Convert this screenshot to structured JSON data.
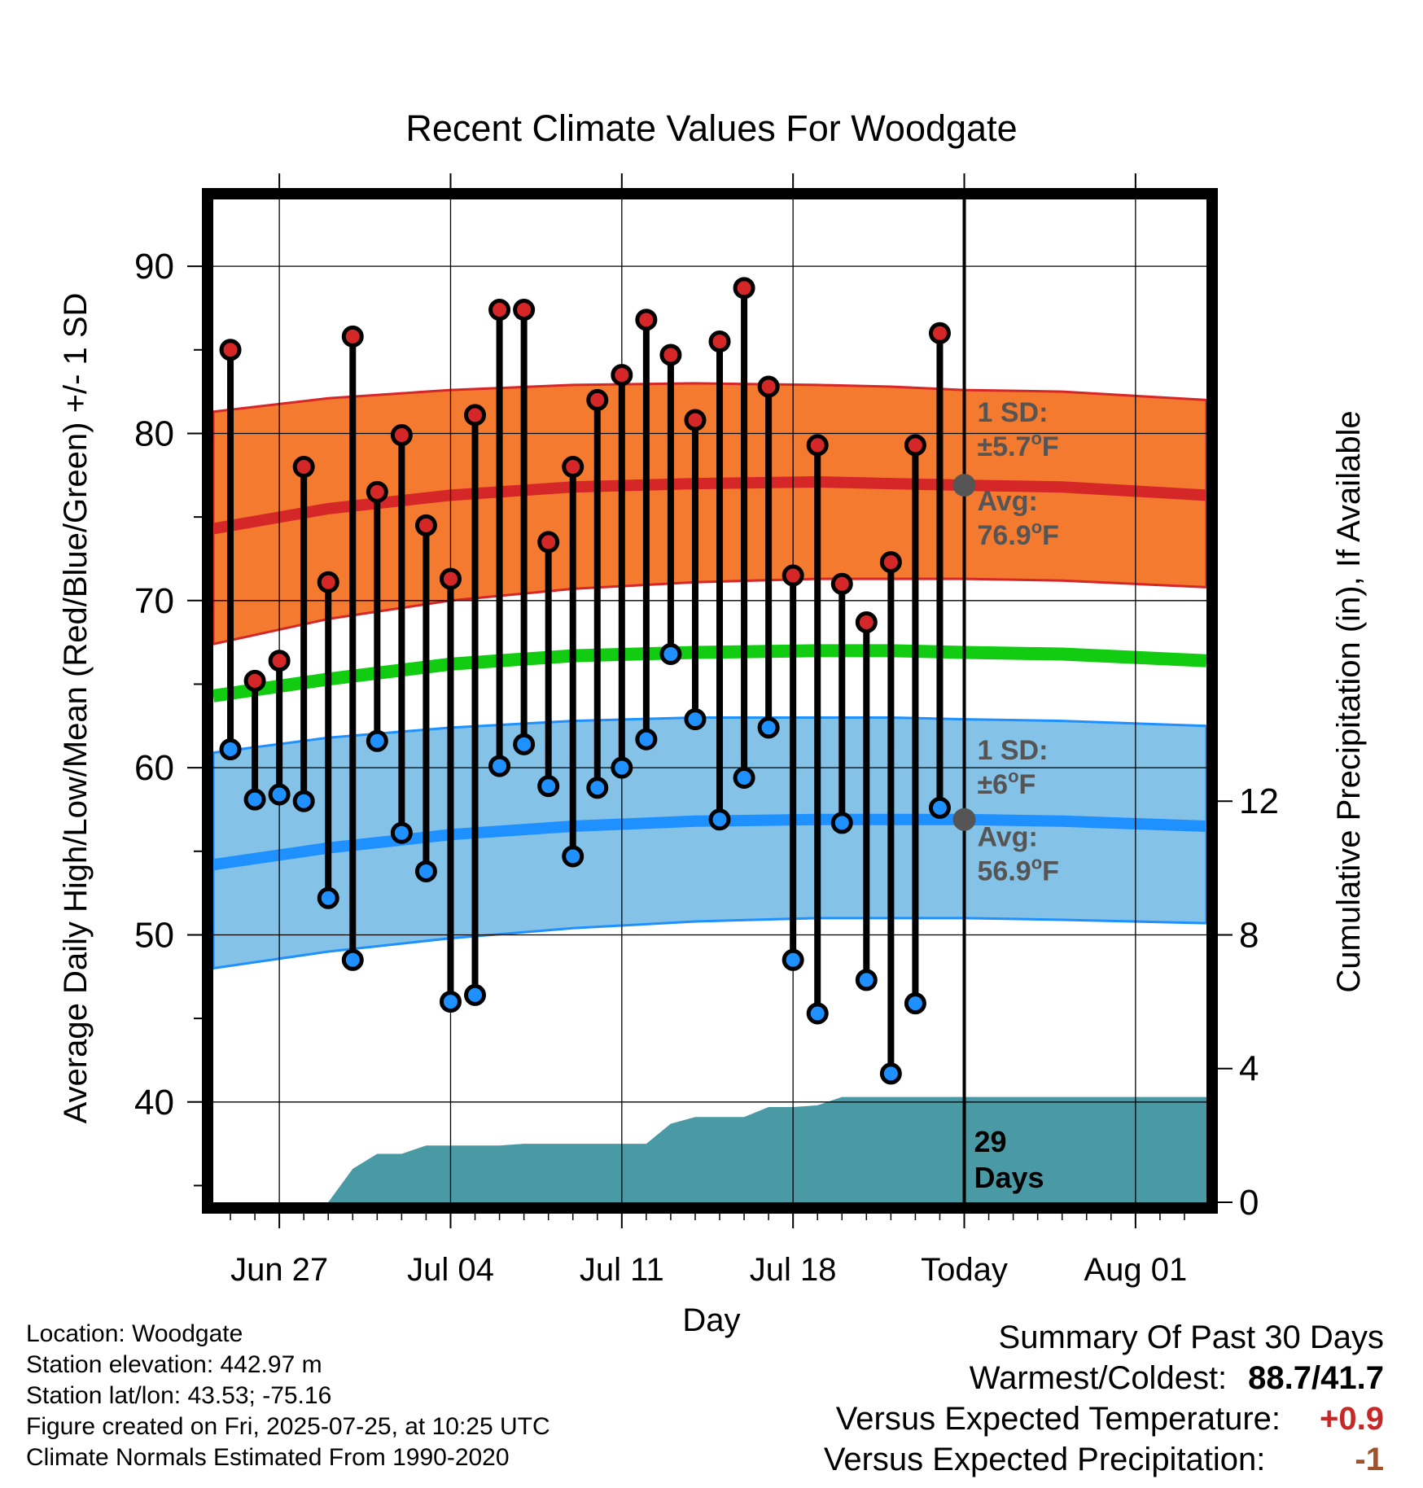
{
  "chart_data": {
    "type": "line",
    "title": "Recent Climate Values For Woodgate",
    "xlabel": "Day",
    "ylabel": "Average Daily High/Low/Mean (Red/Blue/Green) +/- 1 SD",
    "ylabel_right": "Cumulative Precipitation (in), If Available",
    "ylim": [
      34,
      94
    ],
    "ylim_right": [
      0,
      30
    ],
    "x_ticks": [
      {
        "day": 3,
        "label": "Jun 27"
      },
      {
        "day": 10,
        "label": "Jul 04"
      },
      {
        "day": 17,
        "label": "Jul 11"
      },
      {
        "day": 24,
        "label": "Jul 18"
      },
      {
        "day": 31,
        "label": "Today"
      },
      {
        "day": 38,
        "label": "Aug 01"
      }
    ],
    "y_ticks_left": [
      40,
      50,
      60,
      70,
      80,
      90
    ],
    "y_ticks_right": [
      0,
      4,
      8,
      12
    ],
    "x_range": [
      0.3,
      40.9
    ],
    "today_day": 31,
    "grid": true,
    "colors": {
      "high_band": "#f47a2f",
      "high_avg": "#d62728",
      "low_band": "#84c2e8",
      "low_avg": "#1e90ff",
      "mean": "#11cc11",
      "precip": "#4a9aa5",
      "high_marker": "#d62728",
      "low_marker": "#1e90ff"
    },
    "daily_observations": {
      "x": [
        1,
        2,
        3,
        4,
        5,
        6,
        7,
        8,
        9,
        10,
        11,
        12,
        13,
        14,
        15,
        16,
        17,
        18,
        19,
        20,
        21,
        22,
        23,
        24,
        25,
        26,
        27,
        28,
        29,
        30
      ],
      "high": [
        85.0,
        65.2,
        66.4,
        78.0,
        71.1,
        85.8,
        76.5,
        79.9,
        74.5,
        71.3,
        81.1,
        87.4,
        87.4,
        73.5,
        78.0,
        82.0,
        83.5,
        86.8,
        84.7,
        80.8,
        85.5,
        88.7,
        82.8,
        71.5,
        79.3,
        71.0,
        68.7,
        72.3,
        79.3,
        86.0
      ],
      "low": [
        61.1,
        58.1,
        58.4,
        58.0,
        52.2,
        48.5,
        61.6,
        56.1,
        53.8,
        46.0,
        46.4,
        60.1,
        61.4,
        58.9,
        54.7,
        58.8,
        60.0,
        61.7,
        66.8,
        62.9,
        56.9,
        59.4,
        62.4,
        48.5,
        45.3,
        56.7,
        47.3,
        41.7,
        45.9,
        57.6
      ]
    },
    "normals": {
      "x": [
        0.3,
        5,
        10,
        15,
        20,
        25,
        28,
        31,
        35,
        40.9
      ],
      "high_avg": [
        74.3,
        75.5,
        76.3,
        76.8,
        77.0,
        77.1,
        77.0,
        76.9,
        76.8,
        76.3
      ],
      "high_upper": [
        81.3,
        82.1,
        82.6,
        82.9,
        83.0,
        82.9,
        82.8,
        82.6,
        82.5,
        82.0
      ],
      "high_lower": [
        67.4,
        68.9,
        70.0,
        70.7,
        71.1,
        71.3,
        71.3,
        71.3,
        71.2,
        70.8
      ],
      "low_avg": [
        54.2,
        55.2,
        56.0,
        56.5,
        56.8,
        56.9,
        56.9,
        56.9,
        56.8,
        56.5
      ],
      "low_upper": [
        60.9,
        61.8,
        62.4,
        62.8,
        63.0,
        63.0,
        63.0,
        62.9,
        62.8,
        62.5
      ],
      "low_lower": [
        48.0,
        49.0,
        49.8,
        50.4,
        50.8,
        51.0,
        51.0,
        51.0,
        50.9,
        50.7
      ],
      "mean": [
        64.3,
        65.3,
        66.2,
        66.7,
        66.9,
        67.0,
        67.0,
        66.9,
        66.8,
        66.4
      ]
    },
    "cumulative_precip": {
      "x": [
        5.0,
        6.0,
        7.0,
        8.0,
        9.0,
        10.0,
        11.0,
        12.0,
        13.0,
        14.0,
        15.0,
        16.0,
        17.0,
        18.0,
        19.0,
        20.0,
        21.0,
        22.0,
        23.0,
        24.0,
        25.0,
        26.0,
        27.0,
        28.0,
        29.0,
        30.0,
        31.0,
        40.9
      ],
      "y": [
        0.0,
        1.0,
        1.45,
        1.45,
        1.7,
        1.7,
        1.7,
        1.7,
        1.75,
        1.75,
        1.75,
        1.75,
        1.75,
        1.75,
        2.35,
        2.55,
        2.55,
        2.55,
        2.85,
        2.85,
        2.9,
        3.15,
        3.15,
        3.15,
        3.15,
        3.15,
        3.15,
        3.15
      ]
    },
    "annotations": {
      "high_sd_label": "1 SD:",
      "high_sd_value": "±5.7",
      "high_avg_label": "Avg:",
      "high_avg_value": "76.9",
      "low_sd_label": "1 SD:",
      "low_sd_value": "±6",
      "low_avg_label": "Avg:",
      "low_avg_value": "56.9",
      "unit_sup": "o",
      "unit_letter": "F",
      "days_number": "29",
      "days_word": "Days"
    }
  },
  "info": {
    "location": "Location: Woodgate",
    "elevation": "Station elevation: 442.97 m",
    "latlon": "Station lat/lon: 43.53; -75.16",
    "created": "Figure created on Fri, 2025-07-25, at 10:25 UTC",
    "normals": "Climate Normals Estimated From 1990-2020"
  },
  "summary": {
    "title": "Summary Of Past 30 Days",
    "warm_cold_label": "Warmest/Coldest:",
    "warm_cold_value": "88.7/41.7",
    "temp_label": "Versus Expected Temperature:",
    "temp_value": "+0.9",
    "temp_color": "#c62828",
    "precip_label": "Versus Expected Precipitation:",
    "precip_value": "-1",
    "precip_color": "#a0522d"
  }
}
